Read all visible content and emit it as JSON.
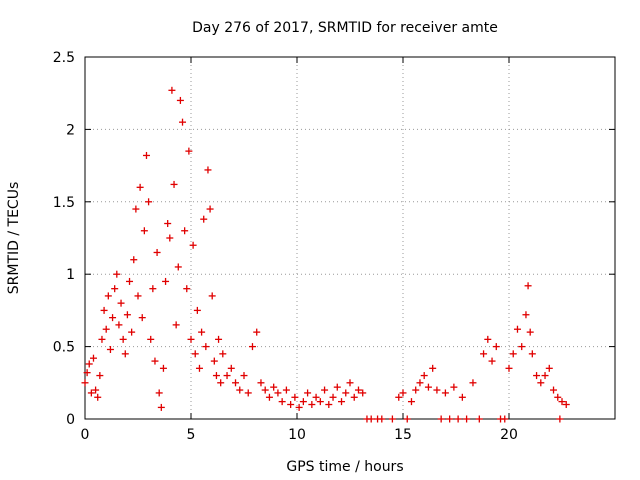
{
  "chart_data": {
    "type": "scatter",
    "title": "Day 276 of 2017, SRMTID for receiver amte",
    "xlabel": "GPS time / hours",
    "ylabel": "SRMTID / TECUs",
    "xlim": [
      0,
      25
    ],
    "ylim": [
      0,
      2.5
    ],
    "grid": true,
    "marker": "+",
    "series_color": "#e00000",
    "x_ticks": [
      0,
      5,
      10,
      15,
      20
    ],
    "x_tick_labels": [
      "0",
      "5",
      "10",
      "15",
      "20"
    ],
    "y_ticks": [
      0,
      0.5,
      1,
      1.5,
      2,
      2.5
    ],
    "y_tick_labels": [
      "0",
      "0.5",
      "1",
      "1.5",
      "2",
      "2.5"
    ],
    "series": [
      {
        "name": "SRMTID",
        "points": [
          [
            0.0,
            0.25
          ],
          [
            0.1,
            0.32
          ],
          [
            0.2,
            0.38
          ],
          [
            0.3,
            0.18
          ],
          [
            0.4,
            0.42
          ],
          [
            0.5,
            0.2
          ],
          [
            0.6,
            0.15
          ],
          [
            0.7,
            0.3
          ],
          [
            0.8,
            0.55
          ],
          [
            0.9,
            0.75
          ],
          [
            1.0,
            0.62
          ],
          [
            1.1,
            0.85
          ],
          [
            1.2,
            0.48
          ],
          [
            1.3,
            0.7
          ],
          [
            1.4,
            0.9
          ],
          [
            1.5,
            1.0
          ],
          [
            1.6,
            0.65
          ],
          [
            1.7,
            0.8
          ],
          [
            1.8,
            0.55
          ],
          [
            1.9,
            0.45
          ],
          [
            2.0,
            0.72
          ],
          [
            2.1,
            0.95
          ],
          [
            2.2,
            0.6
          ],
          [
            2.3,
            1.1
          ],
          [
            2.4,
            1.45
          ],
          [
            2.5,
            0.85
          ],
          [
            2.6,
            1.6
          ],
          [
            2.7,
            0.7
          ],
          [
            2.8,
            1.3
          ],
          [
            2.9,
            1.82
          ],
          [
            3.0,
            1.5
          ],
          [
            3.1,
            0.55
          ],
          [
            3.2,
            0.9
          ],
          [
            3.3,
            0.4
          ],
          [
            3.4,
            1.15
          ],
          [
            3.5,
            0.18
          ],
          [
            3.6,
            0.08
          ],
          [
            3.7,
            0.35
          ],
          [
            3.8,
            0.95
          ],
          [
            3.9,
            1.35
          ],
          [
            4.0,
            1.25
          ],
          [
            4.1,
            2.27
          ],
          [
            4.2,
            1.62
          ],
          [
            4.3,
            0.65
          ],
          [
            4.4,
            1.05
          ],
          [
            4.5,
            2.2
          ],
          [
            4.6,
            2.05
          ],
          [
            4.7,
            1.3
          ],
          [
            4.8,
            0.9
          ],
          [
            4.9,
            1.85
          ],
          [
            5.0,
            0.55
          ],
          [
            5.1,
            1.2
          ],
          [
            5.2,
            0.45
          ],
          [
            5.3,
            0.75
          ],
          [
            5.4,
            0.35
          ],
          [
            5.5,
            0.6
          ],
          [
            5.6,
            1.38
          ],
          [
            5.7,
            0.5
          ],
          [
            5.8,
            1.72
          ],
          [
            5.9,
            1.45
          ],
          [
            6.0,
            0.85
          ],
          [
            6.1,
            0.4
          ],
          [
            6.2,
            0.3
          ],
          [
            6.3,
            0.55
          ],
          [
            6.4,
            0.25
          ],
          [
            6.5,
            0.45
          ],
          [
            6.7,
            0.3
          ],
          [
            6.9,
            0.35
          ],
          [
            7.1,
            0.25
          ],
          [
            7.3,
            0.2
          ],
          [
            7.5,
            0.3
          ],
          [
            7.7,
            0.18
          ],
          [
            7.9,
            0.5
          ],
          [
            8.1,
            0.6
          ],
          [
            8.3,
            0.25
          ],
          [
            8.5,
            0.2
          ],
          [
            8.7,
            0.15
          ],
          [
            8.9,
            0.22
          ],
          [
            9.1,
            0.18
          ],
          [
            9.3,
            0.12
          ],
          [
            9.5,
            0.2
          ],
          [
            9.7,
            0.1
          ],
          [
            9.9,
            0.15
          ],
          [
            10.1,
            0.08
          ],
          [
            10.3,
            0.12
          ],
          [
            10.5,
            0.18
          ],
          [
            10.7,
            0.1
          ],
          [
            10.9,
            0.15
          ],
          [
            11.1,
            0.12
          ],
          [
            11.3,
            0.2
          ],
          [
            11.5,
            0.1
          ],
          [
            11.7,
            0.15
          ],
          [
            11.9,
            0.22
          ],
          [
            12.1,
            0.12
          ],
          [
            12.3,
            0.18
          ],
          [
            12.5,
            0.25
          ],
          [
            12.7,
            0.15
          ],
          [
            12.9,
            0.2
          ],
          [
            13.1,
            0.18
          ],
          [
            13.3,
            0.0
          ],
          [
            13.5,
            0.0
          ],
          [
            13.8,
            0.0
          ],
          [
            14.0,
            0.0
          ],
          [
            14.5,
            0.0
          ],
          [
            14.8,
            0.15
          ],
          [
            15.0,
            0.18
          ],
          [
            15.2,
            0.0
          ],
          [
            15.4,
            0.12
          ],
          [
            15.6,
            0.2
          ],
          [
            15.8,
            0.25
          ],
          [
            16.0,
            0.3
          ],
          [
            16.2,
            0.22
          ],
          [
            16.4,
            0.35
          ],
          [
            16.6,
            0.2
          ],
          [
            16.8,
            0.0
          ],
          [
            17.0,
            0.18
          ],
          [
            17.2,
            0.0
          ],
          [
            17.4,
            0.22
          ],
          [
            17.6,
            0.0
          ],
          [
            17.8,
            0.15
          ],
          [
            18.0,
            0.0
          ],
          [
            18.3,
            0.25
          ],
          [
            18.6,
            0.0
          ],
          [
            18.8,
            0.45
          ],
          [
            19.0,
            0.55
          ],
          [
            19.2,
            0.4
          ],
          [
            19.4,
            0.5
          ],
          [
            19.6,
            0.0
          ],
          [
            19.8,
            0.0
          ],
          [
            20.0,
            0.35
          ],
          [
            20.2,
            0.45
          ],
          [
            20.4,
            0.62
          ],
          [
            20.6,
            0.5
          ],
          [
            20.8,
            0.72
          ],
          [
            20.9,
            0.92
          ],
          [
            21.0,
            0.6
          ],
          [
            21.1,
            0.45
          ],
          [
            21.3,
            0.3
          ],
          [
            21.5,
            0.25
          ],
          [
            21.7,
            0.3
          ],
          [
            21.9,
            0.35
          ],
          [
            22.1,
            0.2
          ],
          [
            22.3,
            0.15
          ],
          [
            22.4,
            0.0
          ],
          [
            22.5,
            0.12
          ],
          [
            22.7,
            0.1
          ]
        ]
      }
    ]
  }
}
